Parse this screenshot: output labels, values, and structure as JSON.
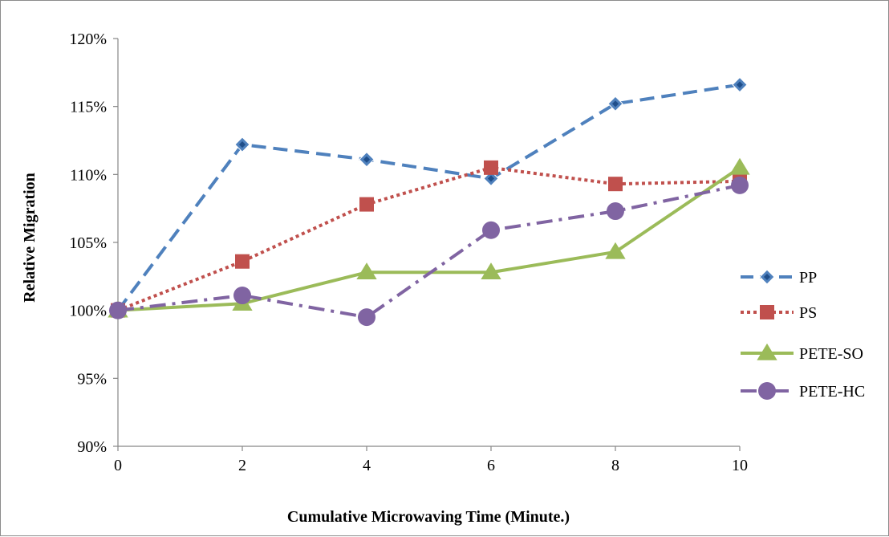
{
  "chart_data": {
    "type": "line",
    "title": "",
    "xlabel": "Cumulative Microwaving Time (Minute.)",
    "ylabel": "Relative Migration",
    "x": [
      0,
      2,
      4,
      6,
      8,
      10
    ],
    "x_tick_labels": [
      "0",
      "2",
      "4",
      "6",
      "8",
      "10"
    ],
    "xlim": [
      0,
      10
    ],
    "ylim": [
      0.9,
      1.2
    ],
    "y_ticks": [
      0.9,
      0.95,
      1.0,
      1.05,
      1.1,
      1.15,
      1.2
    ],
    "y_tick_labels": [
      "90%",
      "95%",
      "100%",
      "105%",
      "110%",
      "115%",
      "120%"
    ],
    "grid": false,
    "legend_position": "right",
    "series": [
      {
        "name": "PP",
        "color": "#4F81BD",
        "dash": "dashed",
        "marker": "diamond",
        "values": [
          1.0,
          1.122,
          1.111,
          1.097,
          1.152,
          1.166
        ]
      },
      {
        "name": "PS",
        "color": "#C0504D",
        "dash": "dotted",
        "marker": "square",
        "values": [
          1.0,
          1.036,
          1.078,
          1.105,
          1.093,
          1.095
        ]
      },
      {
        "name": "PETE-SO",
        "color": "#9BBB59",
        "dash": "solid",
        "marker": "triangle",
        "values": [
          1.0,
          1.005,
          1.028,
          1.028,
          1.043,
          1.105
        ]
      },
      {
        "name": "PETE-HC",
        "color": "#8064A2",
        "dash": "dashdot",
        "marker": "circle",
        "values": [
          1.0,
          1.011,
          0.995,
          1.059,
          1.073,
          1.092
        ]
      }
    ]
  }
}
